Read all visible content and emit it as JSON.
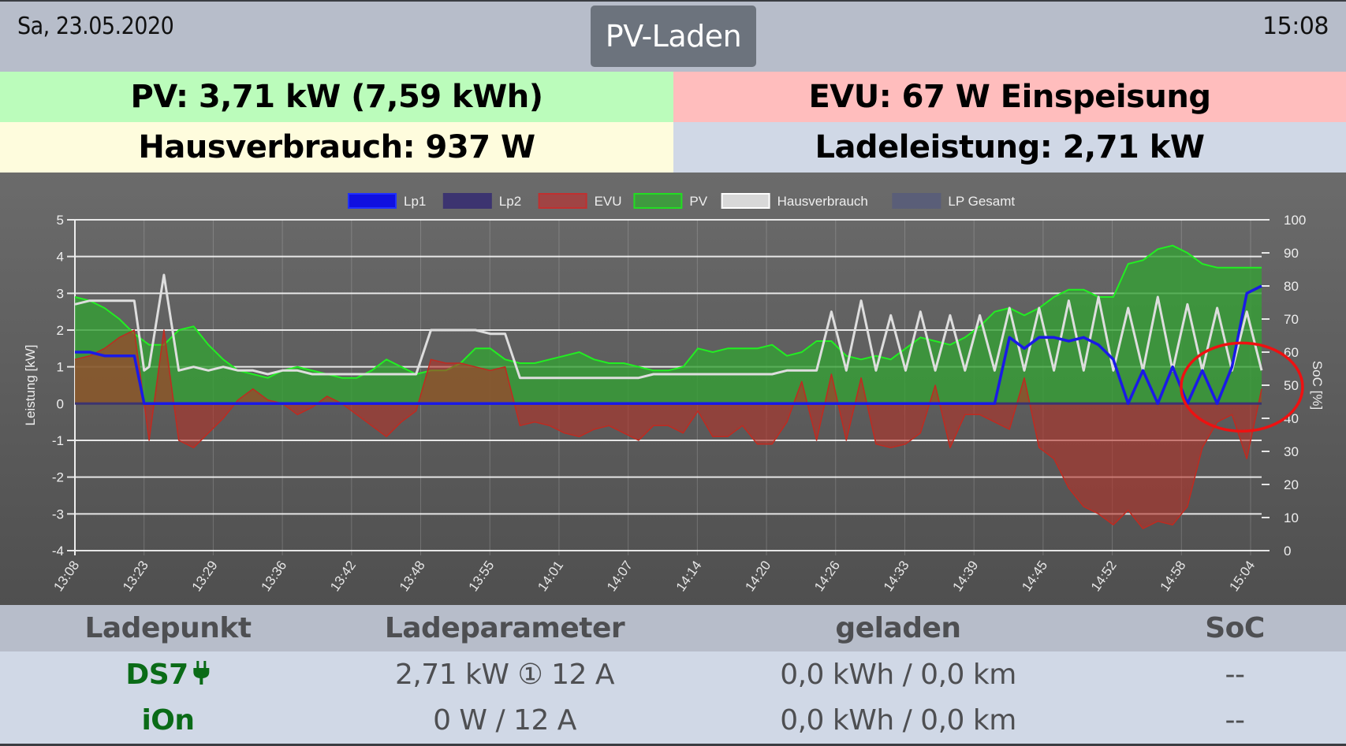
{
  "header": {
    "date": "Sa, 23.05.2020",
    "time": "15:08",
    "mode_button": "PV-Laden"
  },
  "stats": {
    "pv": "PV: 3,71 kW (7,59 kWh)",
    "evu": "EVU: 67 W Einspeisung",
    "hausverbrauch": "Hausverbrauch: 937 W",
    "ladeleistung": "Ladeleistung: 2,71 kW"
  },
  "colors": {
    "pv_row": "#bbfcbb",
    "evu_row": "#ffbdbd",
    "haus_row": "#fefcdd",
    "lade_row": "#d0d8e6",
    "lp_name": "#0a6b17"
  },
  "table": {
    "headers": [
      "Ladepunkt",
      "Ladeparameter",
      "geladen",
      "SoC"
    ],
    "rows": [
      {
        "name": "DS7",
        "icon": "plug-icon",
        "param": "2,71 kW ① 12 A",
        "geladen": "0,0 kWh / 0,0 km",
        "soc": "--"
      },
      {
        "name": "iOn",
        "icon": "",
        "param": "0 W / 12 A",
        "geladen": "0,0 kWh / 0,0 km",
        "soc": "--"
      }
    ]
  },
  "chart_data": {
    "type": "line",
    "title": "",
    "xlabel": "",
    "ylabel": "Leistung [kW]",
    "y2label": "SoC [%]",
    "ylim": [
      -4,
      5
    ],
    "y2lim": [
      0,
      100
    ],
    "yticks": [
      "5",
      "4",
      "3",
      "2",
      "1",
      "0",
      "-1",
      "-2",
      "-3",
      "-4"
    ],
    "y2ticks": [
      "100",
      "90",
      "80",
      "70",
      "60",
      "50",
      "40",
      "30",
      "20",
      "10",
      "0"
    ],
    "xticks": [
      "13:08",
      "13:23",
      "13:29",
      "13:36",
      "13:42",
      "13:48",
      "13:55",
      "14:01",
      "14:07",
      "14:14",
      "14:20",
      "14:26",
      "14:33",
      "14:39",
      "14:45",
      "14:52",
      "14:58",
      "15:04"
    ],
    "grid": true,
    "legend_position": "top",
    "legend": [
      {
        "name": "Lp1",
        "color": "#1010e0",
        "border": "#2030ff"
      },
      {
        "name": "Lp2",
        "color": "#3c3470",
        "border": "#3c3470"
      },
      {
        "name": "EVU",
        "color": "#a04444",
        "border": "#c03030"
      },
      {
        "name": "PV",
        "color": "#3f9a3f",
        "border": "#22dd22"
      },
      {
        "name": "Hausverbrauch",
        "color": "#d8d8d8",
        "border": "#ffffff"
      },
      {
        "name": "LP Gesamt",
        "color": "#5a5e78",
        "border": "#5a5e78"
      }
    ],
    "x": [
      0,
      3,
      6,
      9,
      12,
      14,
      15,
      18,
      21,
      24,
      27,
      30,
      33,
      36,
      39,
      42,
      45,
      48,
      51,
      54,
      57,
      60,
      63,
      66,
      69,
      72,
      75,
      78,
      81,
      84,
      87,
      90,
      93,
      96,
      99,
      102,
      105,
      108,
      111,
      114,
      117,
      120,
      123,
      126,
      129,
      132,
      135,
      138,
      141,
      144,
      147,
      150,
      153,
      156,
      159,
      162,
      165,
      168,
      171,
      174,
      177,
      180,
      183,
      186,
      189,
      192,
      195,
      198,
      201,
      204,
      207,
      210,
      213,
      216,
      219,
      222,
      225,
      228,
      231,
      234,
      237,
      240
    ],
    "series": [
      {
        "name": "PV",
        "values": [
          2.9,
          2.8,
          2.6,
          2.3,
          1.9,
          1.7,
          1.6,
          1.6,
          2.0,
          2.1,
          1.6,
          1.2,
          0.9,
          0.8,
          0.7,
          0.9,
          1.0,
          0.9,
          0.8,
          0.7,
          0.7,
          0.9,
          1.2,
          1.0,
          0.8,
          0.9,
          0.9,
          1.1,
          1.5,
          1.5,
          1.2,
          1.1,
          1.1,
          1.2,
          1.3,
          1.4,
          1.2,
          1.1,
          1.1,
          1.0,
          0.9,
          0.9,
          1.0,
          1.5,
          1.4,
          1.5,
          1.5,
          1.5,
          1.6,
          1.3,
          1.4,
          1.7,
          1.7,
          1.3,
          1.2,
          1.3,
          1.2,
          1.5,
          1.8,
          1.7,
          1.6,
          1.8,
          2.1,
          2.5,
          2.6,
          2.4,
          2.6,
          2.9,
          3.1,
          3.1,
          2.9,
          2.9,
          3.8,
          3.9,
          4.2,
          4.3,
          4.1,
          3.8,
          3.7,
          3.7,
          3.7,
          3.7
        ]
      },
      {
        "name": "Hausverbrauch",
        "values": [
          2.7,
          2.8,
          2.8,
          2.8,
          2.8,
          0.9,
          1.0,
          3.5,
          0.9,
          1.0,
          0.9,
          1.0,
          0.9,
          0.9,
          0.8,
          0.9,
          0.9,
          0.8,
          0.8,
          0.8,
          0.8,
          0.8,
          0.8,
          0.8,
          0.8,
          2.0,
          2.0,
          2.0,
          2.0,
          1.9,
          1.9,
          0.7,
          0.7,
          0.7,
          0.7,
          0.7,
          0.7,
          0.7,
          0.7,
          0.7,
          0.8,
          0.8,
          0.8,
          0.8,
          0.8,
          0.8,
          0.8,
          0.8,
          0.8,
          0.9,
          0.9,
          0.9,
          2.5,
          0.9,
          2.8,
          0.9,
          2.4,
          0.9,
          2.5,
          0.9,
          2.4,
          0.9,
          2.4,
          0.9,
          2.6,
          0.9,
          2.6,
          0.9,
          2.8,
          0.9,
          2.9,
          0.9,
          2.6,
          0.9,
          2.9,
          0.9,
          2.7,
          0.9,
          2.6,
          0.9,
          2.5,
          0.9
        ]
      },
      {
        "name": "EVU",
        "values": [
          1.2,
          1.3,
          1.5,
          1.8,
          2.0,
          0.0,
          -1.0,
          2.0,
          -1.0,
          -1.2,
          -0.8,
          -0.4,
          0.1,
          0.4,
          0.1,
          0.0,
          -0.3,
          -0.1,
          0.2,
          0.0,
          -0.3,
          -0.6,
          -0.9,
          -0.5,
          -0.2,
          1.2,
          1.1,
          1.1,
          1.0,
          0.9,
          1.0,
          -0.6,
          -0.5,
          -0.6,
          -0.8,
          -0.9,
          -0.7,
          -0.6,
          -0.8,
          -1.0,
          -0.6,
          -0.6,
          -0.8,
          -0.2,
          -0.9,
          -0.9,
          -0.6,
          -1.1,
          -1.1,
          -0.5,
          0.6,
          -1.0,
          0.8,
          -1.0,
          0.7,
          -1.1,
          -1.2,
          -1.1,
          -0.8,
          0.5,
          -1.2,
          -0.3,
          -0.3,
          -0.5,
          -0.7,
          0.7,
          -1.2,
          -1.5,
          -2.3,
          -2.8,
          -3.0,
          -3.3,
          -2.9,
          -3.4,
          -3.2,
          -3.3,
          -2.8,
          -1.2,
          -0.5,
          -0.3,
          -1.5,
          0.4
        ]
      },
      {
        "name": "Lp1",
        "values": [
          1.4,
          1.4,
          1.3,
          1.3,
          1.3,
          0,
          0,
          0,
          0,
          0,
          0,
          0,
          0,
          0,
          0,
          0,
          0,
          0,
          0,
          0,
          0,
          0,
          0,
          0,
          0,
          0,
          0,
          0,
          0,
          0,
          0,
          0,
          0,
          0,
          0,
          0,
          0,
          0,
          0,
          0,
          0,
          0,
          0,
          0,
          0,
          0,
          0,
          0,
          0,
          0,
          0,
          0,
          0,
          0,
          0,
          0,
          0,
          0,
          0,
          0,
          0,
          0,
          0,
          0,
          1.8,
          1.5,
          1.8,
          1.8,
          1.7,
          1.8,
          1.6,
          1.2,
          0.0,
          0.9,
          0.0,
          1.0,
          0.0,
          0.9,
          0.0,
          1.0,
          3.0,
          3.2
        ]
      },
      {
        "name": "Lp2",
        "values": [
          0,
          0,
          0,
          0,
          0,
          0,
          0,
          0,
          0,
          0,
          0,
          0,
          0,
          0,
          0,
          0,
          0,
          0,
          0,
          0,
          0,
          0,
          0,
          0,
          0,
          0,
          0,
          0,
          0,
          0,
          0,
          0,
          0,
          0,
          0,
          0,
          0,
          0,
          0,
          0,
          0,
          0,
          0,
          0,
          0,
          0,
          0,
          0,
          0,
          0,
          0,
          0,
          0,
          0,
          0,
          0,
          0,
          0,
          0,
          0,
          0,
          0,
          0,
          0,
          0,
          0,
          0,
          0,
          0,
          0,
          0,
          0,
          0,
          0,
          0,
          0,
          0,
          0,
          0,
          0,
          0,
          0
        ]
      }
    ],
    "annotation": {
      "type": "ellipse",
      "color": "#ee1111",
      "cx_minute": 236,
      "cy_kw": 0.45,
      "label": ""
    }
  }
}
